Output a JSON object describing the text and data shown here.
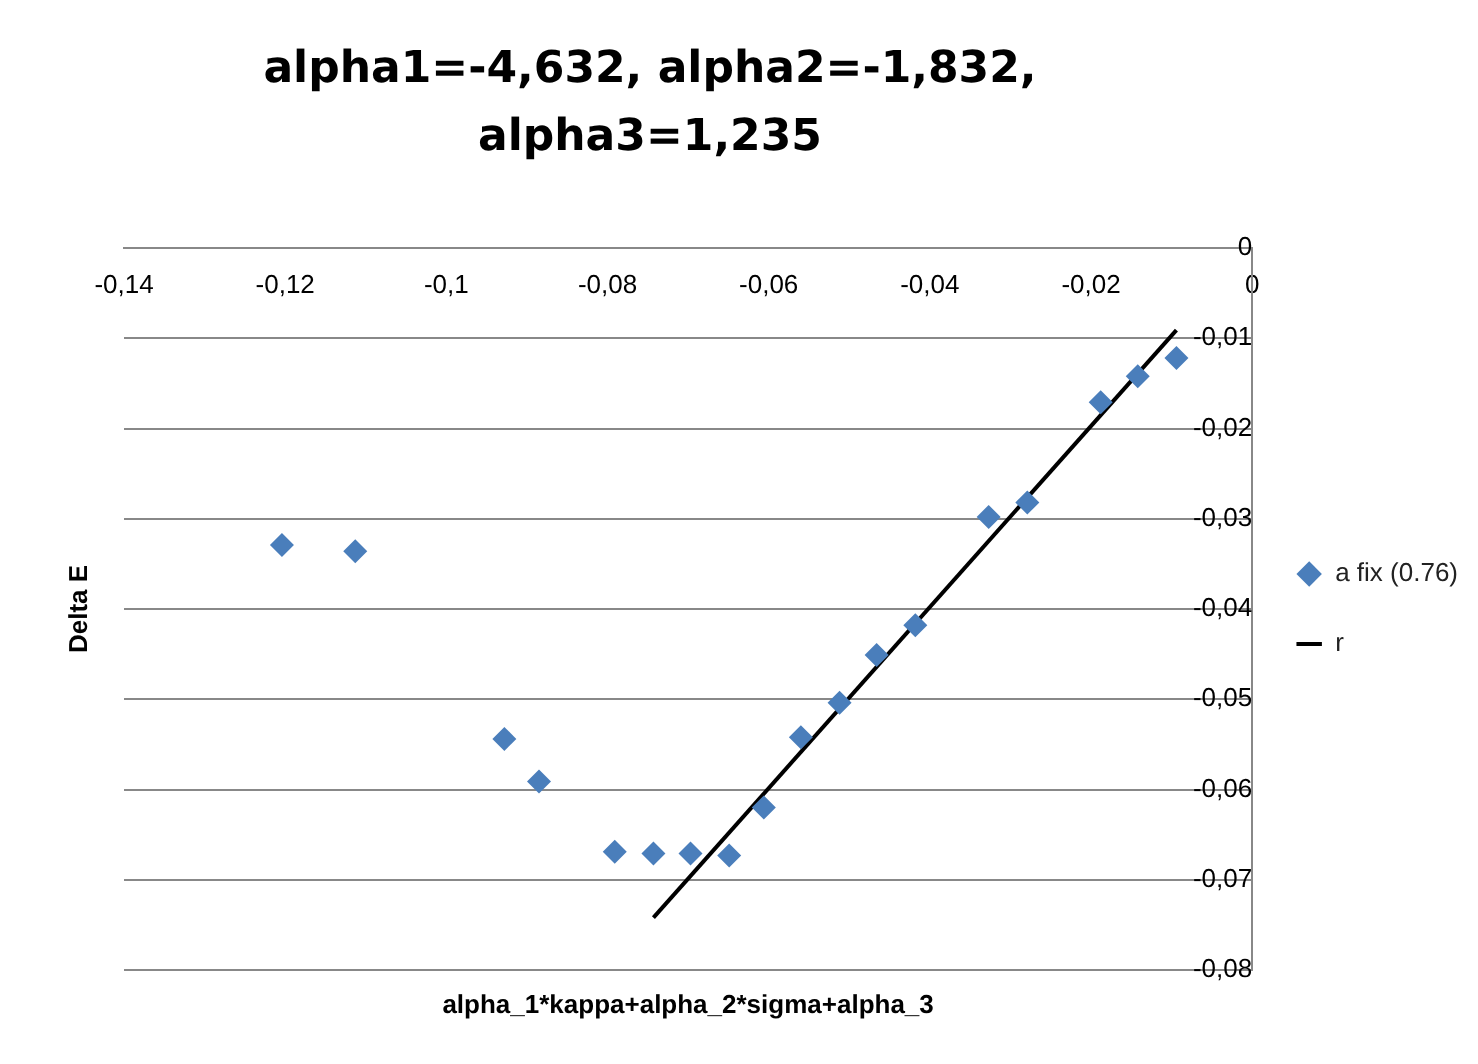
{
  "chart_data": {
    "type": "scatter",
    "title": "alpha1=-4,632, alpha2=-1,832, alpha3=1,235",
    "xlabel": "alpha_1*kappa+alpha_2*sigma+alpha_3",
    "ylabel": "Delta E",
    "xlim": [
      -0.14,
      0
    ],
    "xticks": [
      {
        "value": -0.14,
        "label": "-0,14"
      },
      {
        "value": -0.12,
        "label": "-0,12"
      },
      {
        "value": -0.1,
        "label": "-0,1"
      },
      {
        "value": -0.08,
        "label": "-0,08"
      },
      {
        "value": -0.06,
        "label": "-0,06"
      },
      {
        "value": -0.04,
        "label": "-0,04"
      },
      {
        "value": -0.02,
        "label": "-0,02"
      },
      0
    ],
    "ylim": [
      -0.08,
      0
    ],
    "yticks": [
      0,
      {
        "value": -0.01,
        "label": "-0,01"
      },
      {
        "value": -0.02,
        "label": "-0,02"
      },
      {
        "value": -0.03,
        "label": "-0,03"
      },
      {
        "value": -0.04,
        "label": "-0,04"
      },
      {
        "value": -0.05,
        "label": "-0,05"
      },
      {
        "value": -0.06,
        "label": "-0,06"
      },
      {
        "value": -0.07,
        "label": "-0,07"
      },
      {
        "value": -0.08,
        "label": "-0,08"
      }
    ],
    "grid": "y",
    "legend": "right",
    "series": [
      {
        "name": "a fix (0.76)",
        "color": "#4a7ebb",
        "marker": "diamond",
        "x": [
          -0.1204,
          -0.1113,
          -0.0928,
          -0.0885,
          -0.0791,
          -0.0743,
          -0.0697,
          -0.0649,
          -0.0606,
          -0.056,
          -0.0512,
          -0.0466,
          -0.0418,
          -0.0327,
          -0.0279,
          -0.0188,
          -0.0142,
          -0.0094
        ],
        "values": [
          -0.0329,
          -0.0336,
          -0.0544,
          -0.0591,
          -0.0669,
          -0.0671,
          -0.0671,
          -0.0673,
          -0.062,
          -0.0542,
          -0.0504,
          -0.0451,
          -0.0418,
          -0.0298,
          -0.0282,
          -0.0171,
          -0.0142,
          -0.0122
        ]
      },
      {
        "name": "r",
        "type": "line",
        "color": "#000000",
        "marker": "none",
        "x": [
          -0.0743,
          -0.0094
        ],
        "values": [
          -0.0742,
          -0.0091
        ]
      }
    ]
  }
}
